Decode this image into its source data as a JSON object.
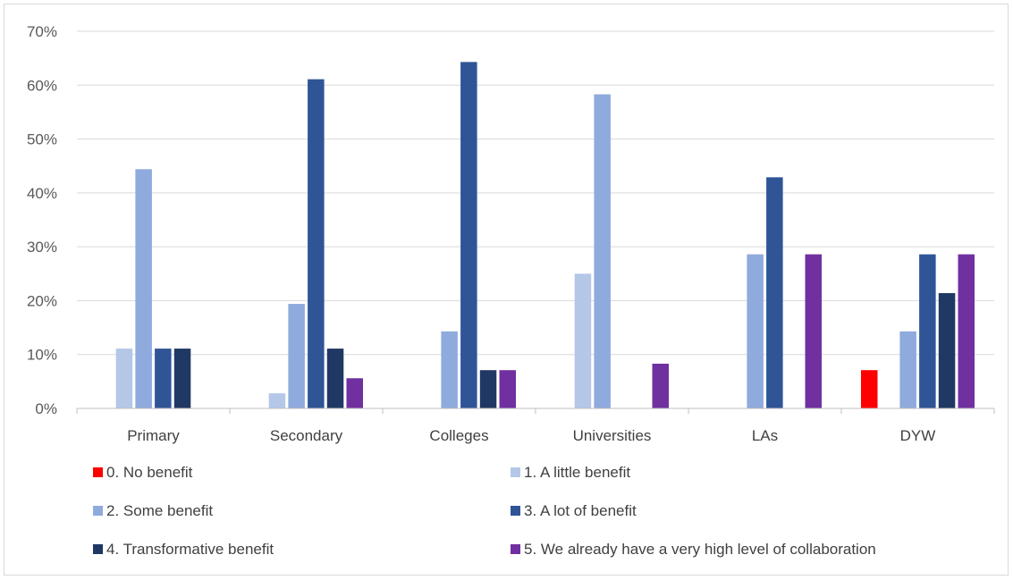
{
  "chart_data": {
    "type": "bar",
    "categories": [
      "Primary",
      "Secondary",
      "Colleges",
      "Universities",
      "LAs",
      "DYW"
    ],
    "ylim": [
      0,
      70
    ],
    "y_ticks": [
      0,
      10,
      20,
      30,
      40,
      50,
      60,
      70
    ],
    "y_tick_labels": [
      "0%",
      "10%",
      "20%",
      "30%",
      "40%",
      "50%",
      "60%",
      "70%"
    ],
    "grid": true,
    "legend_position": "bottom",
    "series": [
      {
        "name": "0. No benefit",
        "color": "#ff0000",
        "values": [
          0,
          0,
          0,
          0,
          0,
          7.1
        ]
      },
      {
        "name": "1. A little benefit",
        "color": "#b4c7e7",
        "values": [
          11.1,
          2.8,
          0,
          25,
          0,
          0
        ]
      },
      {
        "name": "2. Some benefit",
        "color": "#8faadc",
        "values": [
          44.4,
          19.4,
          14.3,
          58.3,
          28.6,
          14.3
        ]
      },
      {
        "name": "3. A lot of benefit",
        "color": "#2f5597",
        "values": [
          11.1,
          61.1,
          64.3,
          0,
          42.9,
          28.6
        ]
      },
      {
        "name": "4. Transformative benefit",
        "color": "#203864",
        "values": [
          11.1,
          11.1,
          7.1,
          0,
          0,
          21.4
        ]
      },
      {
        "name": "5. We already have a very high level of collaboration",
        "color": "#7030a0",
        "values": [
          0,
          5.6,
          7.1,
          8.3,
          28.6,
          28.6
        ]
      }
    ]
  }
}
